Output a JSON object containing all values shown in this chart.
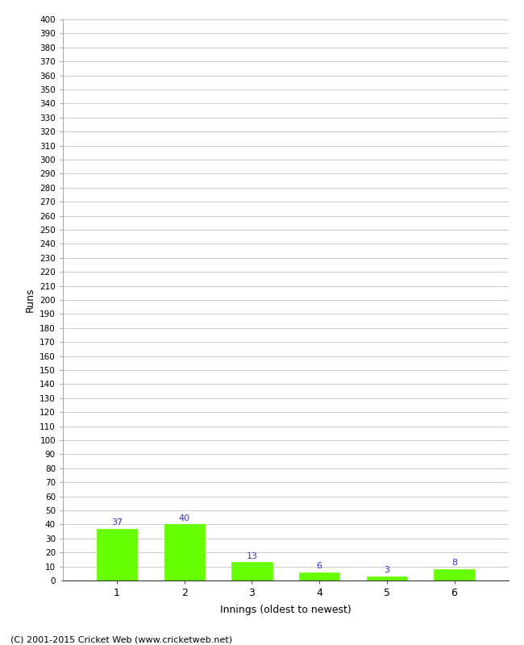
{
  "xlabel": "Innings (oldest to newest)",
  "ylabel": "Runs",
  "categories": [
    "1",
    "2",
    "3",
    "4",
    "5",
    "6"
  ],
  "values": [
    37,
    40,
    13,
    6,
    3,
    8
  ],
  "bar_color": "#66ff00",
  "bar_edge_color": "#66ff00",
  "annotation_color": "#3333cc",
  "ylim": [
    0,
    400
  ],
  "ytick_step": 10,
  "background_color": "#ffffff",
  "grid_color": "#cccccc",
  "footer": "(C) 2001-2015 Cricket Web (www.cricketweb.net)"
}
